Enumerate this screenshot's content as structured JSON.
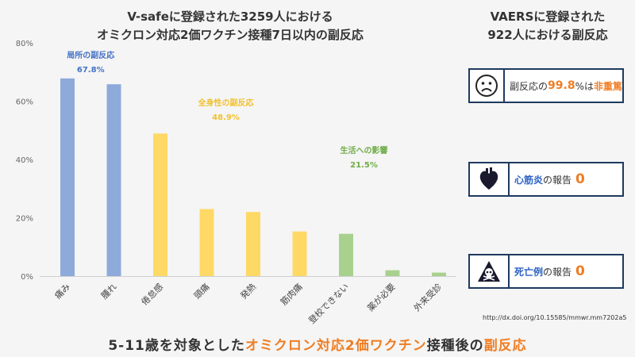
{
  "title": {
    "line1": "V-safeに登録された3259人における",
    "line2": "オミクロン対応2価ワクチン接種7日以内の副反応"
  },
  "right_title": {
    "line1": "VAERSに登録された",
    "line2": "922人における副反応"
  },
  "chart_data": {
    "type": "bar",
    "ylim": [
      0,
      80
    ],
    "yticks": [
      "0%",
      "20%",
      "40%",
      "60%",
      "80%"
    ],
    "categories": [
      "痛み",
      "腫れ",
      "倦怠感",
      "頭痛",
      "発熱",
      "筋肉痛",
      "登校できない",
      "薬が必要",
      "外来受診"
    ],
    "values": [
      67.8,
      65.8,
      48.9,
      23.0,
      22.0,
      15.3,
      14.5,
      2.0,
      1.2
    ],
    "groups": [
      "local",
      "local",
      "systemic",
      "systemic",
      "systemic",
      "systemic",
      "impact",
      "impact",
      "impact"
    ],
    "group_colors": {
      "local": "#8eaadb",
      "systemic": "#ffd966",
      "impact": "#a9d18e"
    },
    "annotations": [
      {
        "label": "局所の副反応",
        "value": "67.8%",
        "color": "#4472c4"
      },
      {
        "label": "全身性の副反応",
        "value": "48.9%",
        "color": "#f2c12e"
      },
      {
        "label": "生活への影響",
        "value": "21.5%",
        "color": "#70ad47"
      }
    ]
  },
  "boxes": [
    {
      "icon": "sad-face-icon",
      "pre": "副反応の",
      "value": "99.8",
      "unit": "%は",
      "post": "非重篤"
    },
    {
      "icon": "heart-icon",
      "label": "心筋炎",
      "mid": "の報告",
      "value": "0"
    },
    {
      "icon": "skull-icon",
      "label": "死亡例",
      "mid": "の報告",
      "value": "0"
    }
  ],
  "source": "http://dx.doi.org/10.15585/mmwr.mm7202a5",
  "bottom_title": {
    "part1": "5-11歳を対象とした",
    "part2": "オミクロン対応2価ワクチン",
    "part3": "接種後の",
    "part4": "副反応"
  }
}
